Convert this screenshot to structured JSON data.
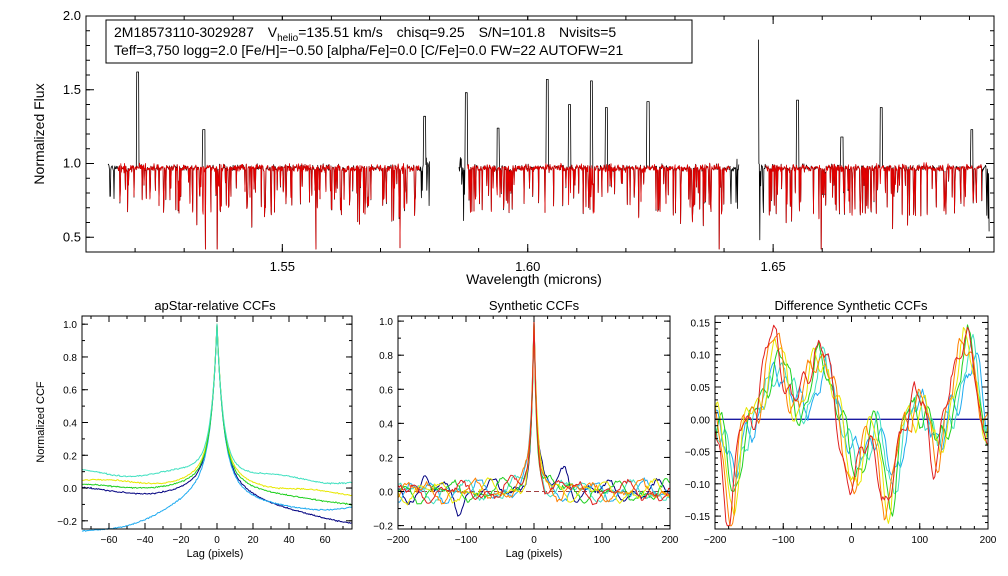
{
  "spectrum_panel": {
    "info_line1": {
      "object_id": "2M18573110-3029287",
      "v_prefix": "V",
      "v_sub": "helio",
      "v_rest": "=135.51 km/s",
      "chisq": "chisq=9.25",
      "sn": "S/N=101.8",
      "nvisits": "Nvisits=5"
    },
    "info_line2": "Teff=3,750 logg=2.0 [Fe/H]=−0.50 [alpha/Fe]=0.0 [C/Fe]=0.0 FW=22 AUTOFW=21",
    "colors": {
      "observed": "#000000",
      "model": "#e00000"
    }
  },
  "chart_data": [
    {
      "type": "line",
      "id": "spectrum",
      "title": "",
      "xlabel": "Wavelength (microns)",
      "ylabel": "Normalized Flux",
      "xlim": [
        1.51,
        1.695
      ],
      "ylim": [
        0.4,
        2.0
      ],
      "x_ticks": [
        1.55,
        1.6,
        1.65
      ],
      "x_tick_labels": [
        "1.55",
        "1.60",
        "1.65"
      ],
      "y_ticks": [
        0.5,
        1.0,
        1.5,
        2.0
      ],
      "y_tick_labels": [
        "0.5",
        "1.0",
        "1.5",
        "2.0"
      ],
      "chips": [
        [
          1.5145,
          1.58
        ],
        [
          1.586,
          1.643
        ],
        [
          1.647,
          1.694
        ]
      ],
      "continuum": 0.97,
      "emission_peaks": [
        {
          "x": 1.5205,
          "y": 1.62
        },
        {
          "x": 1.534,
          "y": 1.23
        },
        {
          "x": 1.579,
          "y": 1.32
        },
        {
          "x": 1.5875,
          "y": 1.48
        },
        {
          "x": 1.594,
          "y": 1.24
        },
        {
          "x": 1.604,
          "y": 1.57
        },
        {
          "x": 1.6085,
          "y": 1.4
        },
        {
          "x": 1.613,
          "y": 1.56
        },
        {
          "x": 1.616,
          "y": 1.38
        },
        {
          "x": 1.6245,
          "y": 1.42
        },
        {
          "x": 1.6468,
          "y": 1.84
        },
        {
          "x": 1.655,
          "y": 1.43
        },
        {
          "x": 1.664,
          "y": 1.18
        },
        {
          "x": 1.672,
          "y": 1.38
        },
        {
          "x": 1.6905,
          "y": 1.23
        }
      ],
      "series": [
        {
          "name": "observed",
          "color": "#000000"
        },
        {
          "name": "model",
          "color": "#e00000"
        }
      ]
    },
    {
      "type": "line",
      "id": "apstar_ccf",
      "title": "apStar-relative CCFs",
      "xlabel": "Lag (pixels)",
      "ylabel": "Normalized CCF",
      "xlim": [
        -75,
        75
      ],
      "ylim": [
        -0.25,
        1.05
      ],
      "x_ticks": [
        -60,
        -40,
        -20,
        0,
        20,
        40,
        60
      ],
      "y_ticks": [
        -0.2,
        0.0,
        0.2,
        0.4,
        0.6,
        0.8,
        1.0
      ],
      "y_tick_labels": [
        "−0.2",
        "0.0",
        "0.2",
        "0.4",
        "0.6",
        "0.8",
        "1.0"
      ],
      "x_tick_labels": [
        "−60",
        "−40",
        "−20",
        "0",
        "20",
        "40",
        "60"
      ],
      "series": [
        {
          "name": "navy",
          "color": "#000080",
          "base": -0.02,
          "wing": 0.22,
          "end_left": 0.0,
          "end_right": -0.22
        },
        {
          "name": "deep-sky",
          "color": "#1eaaf0",
          "base": -0.05,
          "wing": 0.25,
          "end_left": -0.28,
          "end_right": -0.12
        },
        {
          "name": "yellow",
          "color": "#e8e800",
          "base": 0.05,
          "wing": 0.2,
          "end_left": 0.05,
          "end_right": -0.04
        },
        {
          "name": "green",
          "color": "#20d020",
          "base": 0.02,
          "wing": 0.2,
          "end_left": 0.02,
          "end_right": -0.1
        },
        {
          "name": "cyan",
          "color": "#40e0c0",
          "base": 0.08,
          "wing": 0.24,
          "end_left": 0.1,
          "end_right": 0.04
        }
      ]
    },
    {
      "type": "line",
      "id": "synthetic_ccf",
      "title": "Synthetic CCFs",
      "xlabel": "Lag (pixels)",
      "ylabel": "",
      "xlim": [
        -200,
        200
      ],
      "ylim": [
        -0.22,
        1.03
      ],
      "x_ticks": [
        -200,
        -100,
        0,
        100,
        200
      ],
      "x_tick_labels": [
        "−200",
        "−100",
        "0",
        "100",
        "200"
      ],
      "y_ticks": [
        -0.2,
        0.0,
        0.2,
        0.4,
        0.6,
        0.8,
        1.0
      ],
      "y_tick_labels": [
        "−0.2",
        "0.0",
        "0.2",
        "0.4",
        "0.6",
        "0.8",
        "1.0"
      ],
      "zero_line_color": "#a04040",
      "series": [
        {
          "name": "navy",
          "color": "#000080"
        },
        {
          "name": "deep-sky",
          "color": "#1eaaf0"
        },
        {
          "name": "cyan",
          "color": "#40e0c0"
        },
        {
          "name": "green",
          "color": "#20d020"
        },
        {
          "name": "yellow",
          "color": "#e8e800"
        },
        {
          "name": "orange",
          "color": "#ff8000"
        },
        {
          "name": "red",
          "color": "#e02020"
        }
      ]
    },
    {
      "type": "line",
      "id": "difference_ccf",
      "title": "Difference Synthetic CCFs",
      "xlabel": "",
      "ylabel": "",
      "xlim": [
        -200,
        200
      ],
      "ylim": [
        -0.17,
        0.16
      ],
      "x_ticks": [
        -200,
        -100,
        0,
        100,
        200
      ],
      "x_tick_labels": [
        "−200",
        "−100",
        "0",
        "100",
        "200"
      ],
      "y_ticks": [
        -0.15,
        -0.1,
        -0.05,
        0.0,
        0.05,
        0.1,
        0.15
      ],
      "y_tick_labels": [
        "−0.15",
        "−0.10",
        "−0.05",
        "0.00",
        "0.05",
        "0.10",
        "0.15"
      ],
      "zero_line_color": "#1a1aa0",
      "series": [
        {
          "name": "deep-sky",
          "color": "#1eaaf0"
        },
        {
          "name": "cyan",
          "color": "#40e0c0"
        },
        {
          "name": "green",
          "color": "#20d020"
        },
        {
          "name": "yellow",
          "color": "#e8e800"
        },
        {
          "name": "orange",
          "color": "#ff8000"
        },
        {
          "name": "red",
          "color": "#e02020"
        }
      ]
    }
  ]
}
